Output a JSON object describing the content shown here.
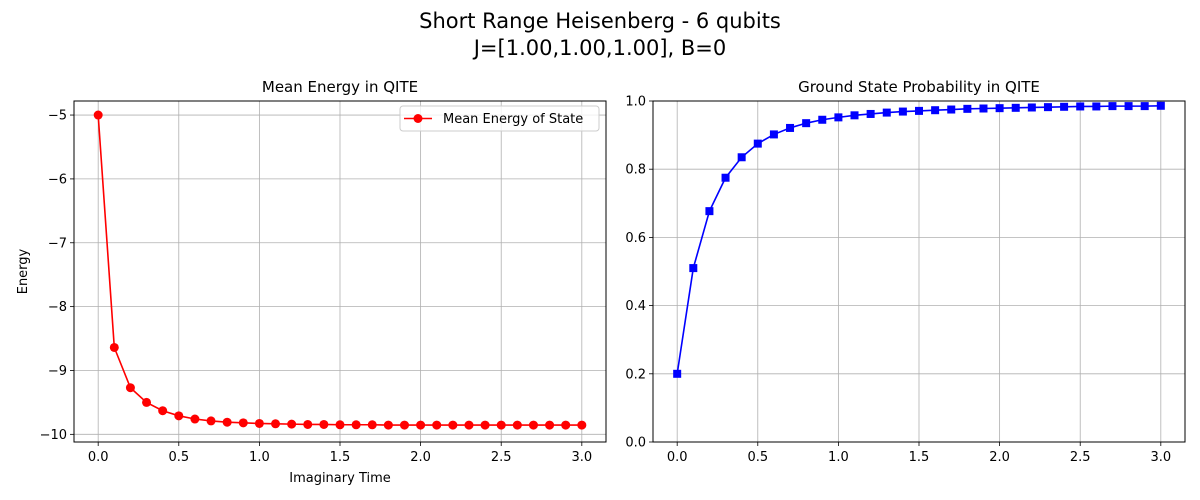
{
  "figure": {
    "title_line1": "Short Range Heisenberg - 6 qubits",
    "title_line2": "J=[1.00,1.00,1.00], B=0"
  },
  "chart_data": [
    {
      "type": "line",
      "title": "Mean Energy in QITE",
      "xlabel": "Imaginary Time",
      "ylabel": "Energy",
      "xlim": [
        -0.15,
        3.15
      ],
      "ylim": [
        -10.12,
        -4.78
      ],
      "xticks": [
        0.0,
        0.5,
        1.0,
        1.5,
        2.0,
        2.5,
        3.0
      ],
      "xtick_labels": [
        "0.0",
        "0.5",
        "1.0",
        "1.5",
        "2.0",
        "2.5",
        "3.0"
      ],
      "yticks": [
        -5,
        -6,
        -7,
        -8,
        -9,
        -10
      ],
      "ytick_labels": [
        "−5",
        "−6",
        "−7",
        "−8",
        "−9",
        "−10"
      ],
      "grid": true,
      "legend": "upper right",
      "series": [
        {
          "name": "Mean Energy of State",
          "color": "#ff0000",
          "marker": "circle",
          "x": [
            0.0,
            0.1,
            0.2,
            0.3,
            0.4,
            0.5,
            0.6,
            0.7,
            0.8,
            0.9,
            1.0,
            1.1,
            1.2,
            1.3,
            1.4,
            1.5,
            1.6,
            1.7,
            1.8,
            1.9,
            2.0,
            2.1,
            2.2,
            2.3,
            2.4,
            2.5,
            2.6,
            2.7,
            2.8,
            2.9,
            3.0
          ],
          "y": [
            -5.0,
            -8.64,
            -9.27,
            -9.5,
            -9.63,
            -9.71,
            -9.76,
            -9.79,
            -9.81,
            -9.82,
            -9.83,
            -9.835,
            -9.84,
            -9.845,
            -9.845,
            -9.85,
            -9.85,
            -9.85,
            -9.855,
            -9.855,
            -9.855,
            -9.855,
            -9.855,
            -9.855,
            -9.855,
            -9.855,
            -9.855,
            -9.855,
            -9.855,
            -9.855,
            -9.855
          ]
        }
      ]
    },
    {
      "type": "line",
      "title": "Ground State Probability in QITE",
      "xlabel": "",
      "ylabel": "",
      "xlim": [
        -0.15,
        3.15
      ],
      "ylim": [
        0.0,
        1.0
      ],
      "xticks": [
        0.0,
        0.5,
        1.0,
        1.5,
        2.0,
        2.5,
        3.0
      ],
      "xtick_labels": [
        "0.0",
        "0.5",
        "1.0",
        "1.5",
        "2.0",
        "2.5",
        "3.0"
      ],
      "yticks": [
        0.0,
        0.2,
        0.4,
        0.6,
        0.8,
        1.0
      ],
      "ytick_labels": [
        "0.0",
        "0.2",
        "0.4",
        "0.6",
        "0.8",
        "1.0"
      ],
      "grid": true,
      "series": [
        {
          "color": "#0000ff",
          "marker": "square",
          "x": [
            0.0,
            0.1,
            0.2,
            0.3,
            0.4,
            0.5,
            0.6,
            0.7,
            0.8,
            0.9,
            1.0,
            1.1,
            1.2,
            1.3,
            1.4,
            1.5,
            1.6,
            1.7,
            1.8,
            1.9,
            2.0,
            2.1,
            2.2,
            2.3,
            2.4,
            2.5,
            2.6,
            2.7,
            2.8,
            2.9,
            3.0
          ],
          "y": [
            0.2,
            0.51,
            0.677,
            0.775,
            0.835,
            0.875,
            0.902,
            0.921,
            0.935,
            0.945,
            0.952,
            0.958,
            0.962,
            0.966,
            0.969,
            0.971,
            0.973,
            0.975,
            0.977,
            0.978,
            0.979,
            0.98,
            0.981,
            0.982,
            0.983,
            0.984,
            0.984,
            0.985,
            0.985,
            0.985,
            0.986
          ]
        }
      ]
    }
  ]
}
